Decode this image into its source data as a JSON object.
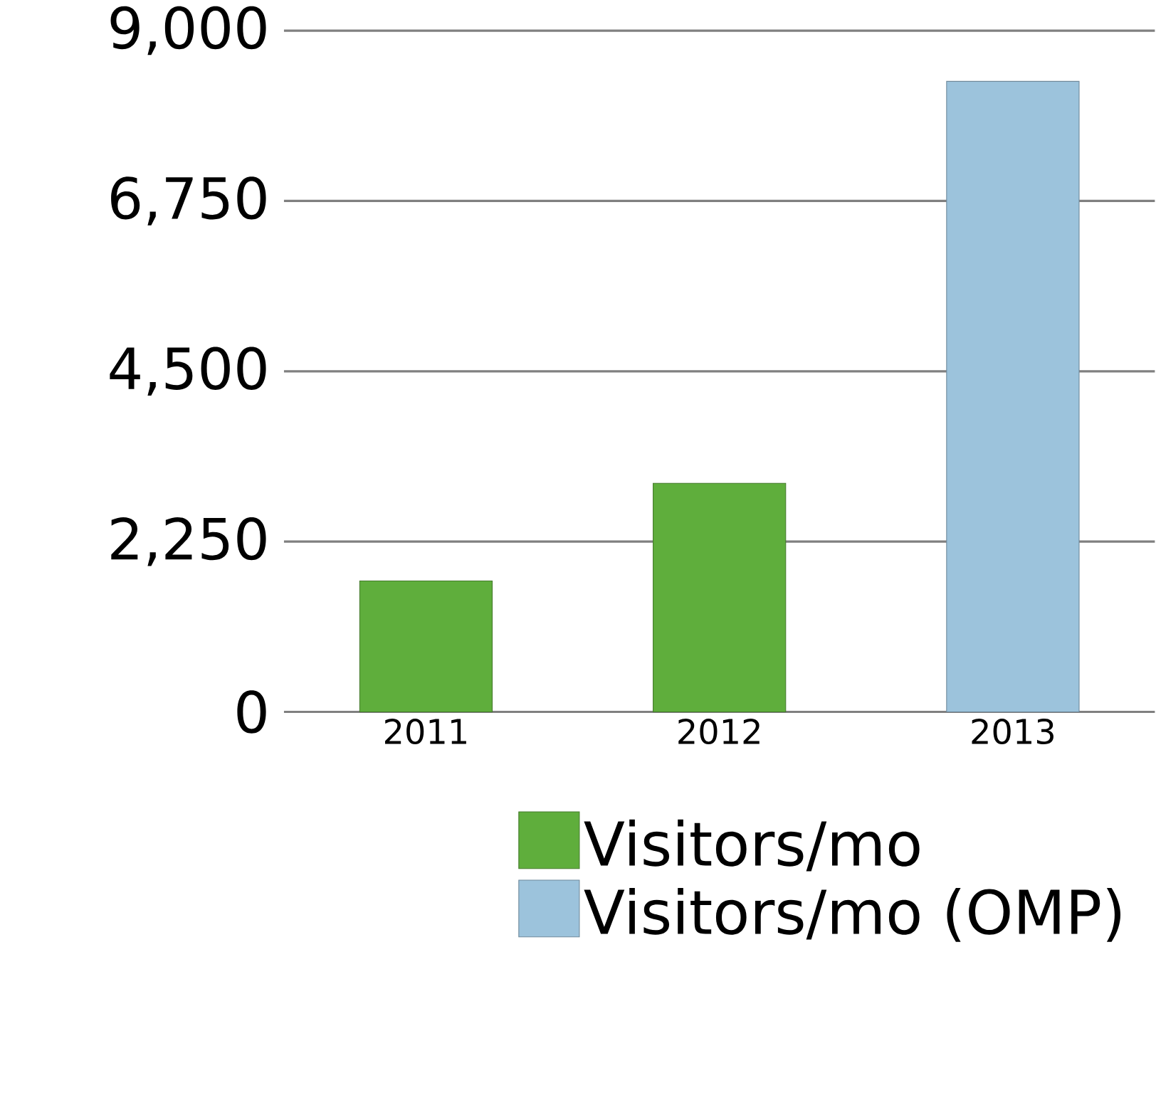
{
  "chart_data": {
    "type": "bar",
    "categories": [
      "2011",
      "2012",
      "2013"
    ],
    "series": [
      {
        "name": "Visitors/mo",
        "color": "#5fae3c",
        "values": [
          1730,
          3020,
          null
        ]
      },
      {
        "name": "Visitors/mo (OMP)",
        "color": "#9cc3dc",
        "values": [
          null,
          null,
          8330
        ]
      }
    ],
    "ylim": [
      0,
      9000
    ],
    "yticks": [
      {
        "value": 0,
        "label": "0"
      },
      {
        "value": 2250,
        "label": "2,250"
      },
      {
        "value": 4500,
        "label": "4,500"
      },
      {
        "value": 6750,
        "label": "6,750"
      },
      {
        "value": 9000,
        "label": "9,000"
      }
    ],
    "grid": "y",
    "legend": "bottom"
  }
}
